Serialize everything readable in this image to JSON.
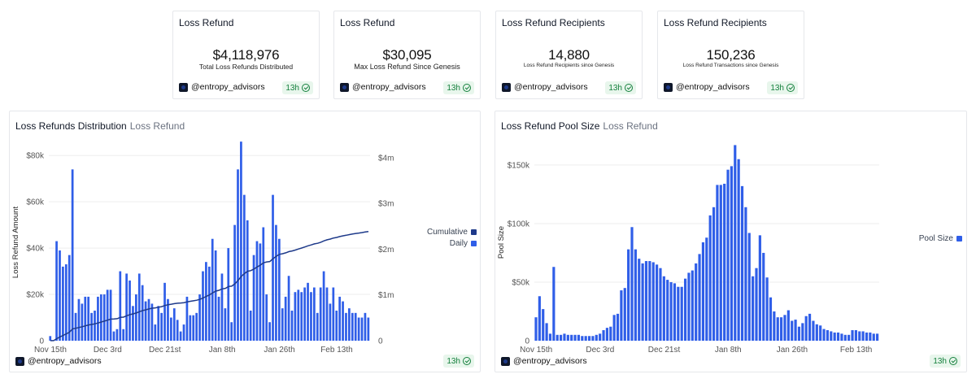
{
  "kpis": [
    {
      "title": "Loss Refund",
      "value": "$4,118,976",
      "label": "Total Loss Refunds Distributed",
      "author": "@entropy_advisors",
      "badge": "13h"
    },
    {
      "title": "Loss Refund",
      "value": "$30,095",
      "label": "Max Loss Refund Since Genesis",
      "author": "@entropy_advisors",
      "badge": "13h"
    },
    {
      "title": "Loss Refund Recipients",
      "value": "14,880",
      "label": "Loss Refund Recipients since Genesis",
      "author": "@entropy_advisors",
      "badge": "13h"
    },
    {
      "title": "Loss Refund Recipients",
      "value": "150,236",
      "label": "Loss Refund Transactions since Genesis",
      "author": "@entropy_advisors",
      "badge": "13h"
    }
  ],
  "left_chart": {
    "title": "Loss Refunds Distribution",
    "subtitle": "Loss Refund",
    "author": "@entropy_advisors",
    "badge": "13h"
  },
  "right_chart": {
    "title": "Loss Refund Pool Size",
    "subtitle": "Loss Refund",
    "author": "@entropy_advisors",
    "badge": "13h"
  },
  "colors": {
    "bar": "#2f5ee8",
    "line": "#1e3a8a",
    "grid": "#eeeeee",
    "axis_text": "#555555",
    "badge_bg": "#e8f6ec",
    "badge_text": "#15803d"
  },
  "chart_data": [
    {
      "type": "bar",
      "title": "Loss Refunds Distribution",
      "subtitle": "Loss Refund",
      "xlabel": "",
      "ylabel": "Loss Refund Amount",
      "ylim": [
        0,
        85000
      ],
      "y2lim": [
        0,
        4300000
      ],
      "yticks": [
        {
          "v": 0,
          "t": "0"
        },
        {
          "v": 20000,
          "t": "$20k"
        },
        {
          "v": 40000,
          "t": "$40k"
        },
        {
          "v": 60000,
          "t": "$60k"
        },
        {
          "v": 80000,
          "t": "$80k"
        }
      ],
      "y2ticks": [
        {
          "v": 0,
          "t": "0"
        },
        {
          "v": 1000000,
          "t": "$1m"
        },
        {
          "v": 2000000,
          "t": "$2m"
        },
        {
          "v": 3000000,
          "t": "$3m"
        },
        {
          "v": 4000000,
          "t": "$4m"
        }
      ],
      "xticks": [
        {
          "i": 0,
          "t": "Nov 15th"
        },
        {
          "i": 18,
          "t": "Dec 3rd"
        },
        {
          "i": 36,
          "t": "Dec 21st"
        },
        {
          "i": 54,
          "t": "Jan 8th"
        },
        {
          "i": 72,
          "t": "Jan 26th"
        },
        {
          "i": 90,
          "t": "Feb 13th"
        }
      ],
      "grid": true,
      "legend_position": "right",
      "series": [
        {
          "name": "Daily",
          "kind": "bar",
          "axis": "left",
          "values": [
            2000,
            0,
            43000,
            39000,
            32000,
            33000,
            37000,
            74000,
            12000,
            18000,
            16000,
            19000,
            19000,
            12000,
            13000,
            19000,
            20000,
            20000,
            22000,
            22000,
            4000,
            5000,
            30000,
            5000,
            29000,
            26000,
            15000,
            20000,
            29000,
            24000,
            17000,
            18000,
            16000,
            7000,
            15000,
            12000,
            25000,
            18000,
            10000,
            14000,
            9000,
            4000,
            7000,
            19000,
            11000,
            11000,
            12000,
            20000,
            30000,
            34000,
            32000,
            44000,
            39000,
            19000,
            29000,
            14000,
            40000,
            8000,
            50000,
            74000,
            86000,
            63000,
            52000,
            13000,
            37000,
            43000,
            42000,
            49000,
            20000,
            8000,
            63000,
            50000,
            44000,
            14000,
            19000,
            28000,
            13000,
            21000,
            22000,
            21000,
            23000,
            25000,
            21000,
            23000,
            12000,
            23000,
            30000,
            23000,
            16000,
            23000,
            13000,
            19000,
            17000,
            12000,
            14000,
            12000,
            12000,
            10000,
            10000,
            12000,
            10000
          ]
        },
        {
          "name": "Cumulative",
          "kind": "line",
          "axis": "right",
          "values": [
            2000,
            2000,
            45000,
            84000,
            116000,
            149000,
            186000,
            260000,
            272000,
            290000,
            306000,
            325000,
            344000,
            356000,
            369000,
            388000,
            408000,
            428000,
            450000,
            472000,
            476000,
            481000,
            511000,
            516000,
            545000,
            571000,
            586000,
            606000,
            635000,
            659000,
            676000,
            694000,
            710000,
            717000,
            732000,
            744000,
            769000,
            787000,
            797000,
            811000,
            820000,
            824000,
            831000,
            850000,
            861000,
            872000,
            884000,
            904000,
            934000,
            968000,
            1000000,
            1044000,
            1083000,
            1102000,
            1131000,
            1145000,
            1185000,
            1193000,
            1243000,
            1317000,
            1403000,
            1466000,
            1518000,
            1531000,
            1568000,
            1611000,
            1653000,
            1702000,
            1722000,
            1730000,
            1793000,
            1843000,
            1887000,
            1901000,
            1920000,
            1948000,
            1961000,
            1982000,
            2004000,
            2025000,
            2048000,
            2073000,
            2094000,
            2117000,
            2129000,
            2152000,
            2182000,
            2205000,
            2221000,
            2244000,
            2257000,
            2276000,
            2293000,
            2305000,
            2319000,
            2331000,
            2343000,
            2353000,
            2363000,
            2375000,
            2385000
          ]
        }
      ]
    },
    {
      "type": "bar",
      "title": "Loss Refund Pool Size",
      "subtitle": "Loss Refund",
      "xlabel": "",
      "ylabel": "Pool Size",
      "ylim": [
        0,
        168000
      ],
      "yticks": [
        {
          "v": 0,
          "t": "0"
        },
        {
          "v": 50000,
          "t": "$50k"
        },
        {
          "v": 100000,
          "t": "$100k"
        },
        {
          "v": 150000,
          "t": "$150k"
        }
      ],
      "xticks": [
        {
          "i": 0,
          "t": "Nov 15th"
        },
        {
          "i": 18,
          "t": "Dec 3rd"
        },
        {
          "i": 36,
          "t": "Dec 21st"
        },
        {
          "i": 54,
          "t": "Jan 8th"
        },
        {
          "i": 72,
          "t": "Jan 26th"
        },
        {
          "i": 90,
          "t": "Feb 13th"
        }
      ],
      "grid": true,
      "legend_position": "right",
      "series": [
        {
          "name": "Pool Size",
          "kind": "bar",
          "axis": "left",
          "values": [
            20000,
            38000,
            27000,
            15000,
            6000,
            63000,
            5000,
            5000,
            6000,
            5000,
            5000,
            5000,
            5000,
            4000,
            4000,
            4000,
            4000,
            5000,
            6000,
            9000,
            11000,
            12000,
            22000,
            23000,
            43000,
            45000,
            78000,
            97000,
            78000,
            70000,
            66000,
            68000,
            68000,
            67000,
            65000,
            62000,
            55000,
            52000,
            50000,
            49000,
            46000,
            46000,
            53000,
            58000,
            60000,
            66000,
            74000,
            84000,
            88000,
            107000,
            114000,
            133000,
            133000,
            134000,
            146000,
            149000,
            167000,
            155000,
            132000,
            114000,
            92000,
            55000,
            62000,
            90000,
            75000,
            54000,
            37000,
            25000,
            20000,
            20000,
            22000,
            26000,
            17000,
            18000,
            12000,
            15000,
            21000,
            23000,
            17000,
            14000,
            13000,
            10000,
            9000,
            8000,
            7000,
            7000,
            6000,
            5000,
            5000,
            9000,
            9000,
            8000,
            8000,
            7000,
            7000,
            6000,
            6000
          ]
        }
      ]
    }
  ]
}
